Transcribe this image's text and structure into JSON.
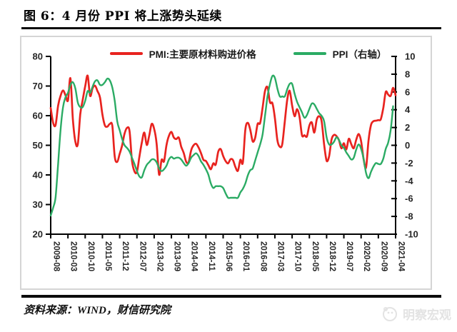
{
  "page": {
    "title": "图 6：4 月份 PPI 将上涨势头延续",
    "source_note": "资料来源：WIND，财信研究院",
    "watermark": "明察宏观"
  },
  "chart_data": {
    "type": "line",
    "title": "图 6：4 月份 PPI 将上涨势头延续",
    "x_start": "2009-08",
    "x_step_months": 1,
    "x_tick_labels": [
      "2009-08",
      "2010-03",
      "2010-10",
      "2011-05",
      "2011-12",
      "2012-07",
      "2013-02",
      "2013-09",
      "2014-04",
      "2014-11",
      "2015-06",
      "2016-01",
      "2016-08",
      "2017-03",
      "2017-10",
      "2018-05",
      "2018-12",
      "2019-07",
      "2020-02",
      "2020-09",
      "2021-04"
    ],
    "grid": "off",
    "legend_position": "top",
    "left_axis": {
      "min": 20,
      "max": 80,
      "ticks": [
        80,
        70,
        60,
        50,
        40,
        30,
        20
      ]
    },
    "right_axis": {
      "min": -10,
      "max": 10,
      "ticks": [
        10,
        8,
        6,
        4,
        2,
        0,
        -2,
        -4,
        -6,
        -8,
        -10
      ]
    },
    "series": [
      {
        "name": "PMI:主要原材料购进价格",
        "axis": "left",
        "color": "#e8231f",
        "values": [
          62.6,
          57.5,
          56.9,
          63.4,
          66.7,
          68.5,
          66.9,
          65.1,
          72.6,
          58.9,
          51.3,
          50.4,
          60.5,
          65.3,
          69.9,
          73.5,
          66.7,
          69.3,
          70.1,
          68.3,
          66.2,
          60.3,
          56.7,
          56.3,
          57.2,
          56.6,
          46.2,
          44.4,
          47.1,
          50.0,
          54.0,
          55.9,
          54.8,
          44.8,
          41.2,
          41.0,
          46.1,
          51.0,
          54.3,
          50.1,
          53.3,
          57.2,
          55.5,
          50.6,
          40.1,
          45.1,
          44.6,
          50.1,
          53.2,
          54.5,
          52.6,
          52.1,
          52.6,
          49.5,
          47.4,
          44.4,
          44.3,
          48.3,
          50.0,
          50.5,
          49.3,
          47.4,
          45.1,
          44.7,
          43.3,
          41.9,
          43.9,
          43.5,
          47.8,
          48.7,
          46.4,
          44.7,
          43.9,
          45.3,
          45.0,
          42.6,
          41.4,
          45.1,
          44.2,
          55.3,
          57.6,
          55.3,
          51.3,
          52.6,
          57.2,
          57.5,
          62.6,
          68.3,
          69.6,
          64.5,
          64.2,
          59.3,
          51.8,
          49.5,
          50.4,
          57.9,
          65.3,
          68.4,
          63.4,
          59.8,
          62.2,
          59.7,
          53.4,
          53.4,
          53.0,
          56.7,
          57.7,
          54.3,
          58.7,
          59.8,
          58.0,
          50.3,
          44.8,
          46.3,
          51.9,
          53.5,
          53.1,
          51.8,
          49.0,
          50.7,
          48.6,
          52.2,
          50.4,
          49.0,
          51.8,
          53.8,
          51.4,
          45.5,
          42.5,
          51.6,
          56.8,
          58.1,
          58.3,
          58.5,
          58.8,
          62.6,
          68.0,
          67.1,
          66.7,
          69.4,
          66.9
        ]
      },
      {
        "name": "PPI（右轴）",
        "axis": "right",
        "color": "#2bab64",
        "values": [
          -7.9,
          -7.0,
          -5.8,
          -2.1,
          1.7,
          4.3,
          5.4,
          5.9,
          6.8,
          7.1,
          6.4,
          4.8,
          4.3,
          4.3,
          5.0,
          6.1,
          5.9,
          6.6,
          7.2,
          7.3,
          6.8,
          6.8,
          7.1,
          7.5,
          7.3,
          6.5,
          5.0,
          2.7,
          1.7,
          0.7,
          0.0,
          -0.3,
          -0.7,
          -1.4,
          -2.1,
          -2.9,
          -3.5,
          -3.6,
          -2.8,
          -2.2,
          -1.9,
          -1.6,
          -1.6,
          -1.9,
          -2.6,
          -2.9,
          -2.7,
          -2.3,
          -1.6,
          -1.3,
          -1.5,
          -1.4,
          -1.4,
          -1.6,
          -2.0,
          -2.3,
          -2.0,
          -1.4,
          -1.1,
          -0.9,
          -1.2,
          -1.8,
          -2.2,
          -2.7,
          -3.3,
          -4.3,
          -4.8,
          -4.6,
          -4.6,
          -4.6,
          -4.8,
          -5.4,
          -5.9,
          -5.9,
          -5.9,
          -5.9,
          -5.9,
          -5.3,
          -4.9,
          -4.3,
          -3.4,
          -2.8,
          -2.6,
          -1.7,
          -0.8,
          0.1,
          1.2,
          3.3,
          5.5,
          6.9,
          7.8,
          7.6,
          6.4,
          5.5,
          5.5,
          5.5,
          6.3,
          6.9,
          6.9,
          5.8,
          4.9,
          4.3,
          3.7,
          3.1,
          3.4,
          4.1,
          4.7,
          4.6,
          4.1,
          3.6,
          3.3,
          2.7,
          0.9,
          0.1,
          0.1,
          0.4,
          0.9,
          0.6,
          0.0,
          -0.3,
          -0.8,
          -1.2,
          -1.6,
          -1.4,
          -0.5,
          0.1,
          -0.4,
          -1.5,
          -3.1,
          -3.7,
          -3.0,
          -2.4,
          -2.0,
          -2.1,
          -2.1,
          -1.5,
          -0.4,
          0.3,
          1.7,
          4.4
        ]
      }
    ]
  }
}
